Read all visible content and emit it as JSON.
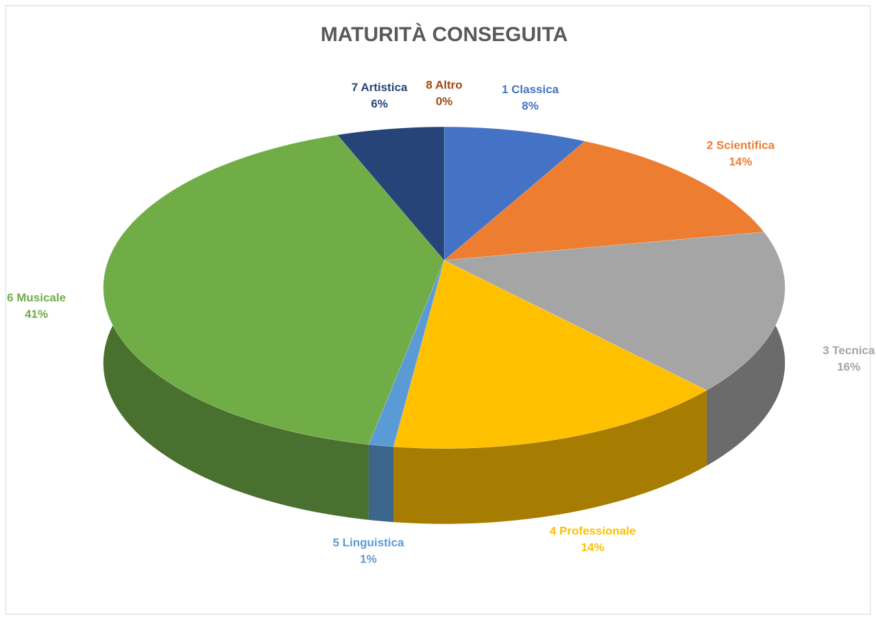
{
  "chart_data": {
    "type": "pie",
    "title": "MATURITÀ CONSEGUITA",
    "categories": [
      "1 Classica",
      "2 Scientifica",
      "3 Tecnica",
      "4 Professionale",
      "5 Linguistica",
      "6 Musicale",
      "7 Artistica",
      "8 Altro"
    ],
    "values": [
      8,
      14,
      16,
      14,
      1,
      41,
      6,
      0
    ],
    "value_labels": [
      "8%",
      "14%",
      "16%",
      "14%",
      "1%",
      "41%",
      "6%",
      "0%"
    ],
    "colors": [
      "#4472c4",
      "#ed7d31",
      "#a5a5a5",
      "#ffc000",
      "#5b9bd5",
      "#70ad47",
      "#264478",
      "#9e480e"
    ]
  }
}
